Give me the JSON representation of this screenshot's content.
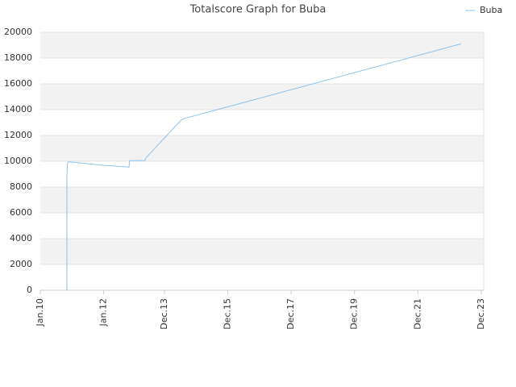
{
  "chart_data": {
    "type": "line",
    "title": "Totalscore Graph for Buba",
    "x": [
      2010.84,
      2010.84,
      2010.86,
      2010.89,
      2011.15,
      2011.91,
      2012.8,
      2012.82,
      2013.31,
      2013.33,
      2014.45,
      2014.53,
      2023.28
    ],
    "series": [
      {
        "name": "Buba",
        "color": "#8ec2ee",
        "values": [
          0,
          8900,
          9900,
          9950,
          9900,
          9700,
          9550,
          10050,
          10060,
          10250,
          13200,
          13300,
          19100
        ]
      }
    ],
    "xlim": [
      2010,
      2024
    ],
    "xticks": [
      {
        "value": 2010,
        "label": "Jan.10"
      },
      {
        "value": 2012,
        "label": "Jan.12"
      },
      {
        "value": 2013.92,
        "label": "Dec.13"
      },
      {
        "value": 2015.92,
        "label": "Dec.15"
      },
      {
        "value": 2017.92,
        "label": "Dec.17"
      },
      {
        "value": 2019.92,
        "label": "Dec.19"
      },
      {
        "value": 2021.92,
        "label": "Dec.21"
      },
      {
        "value": 2023.92,
        "label": "Dec.23"
      }
    ],
    "ylim": [
      0,
      20000
    ],
    "yticks": [
      0,
      2000,
      4000,
      6000,
      8000,
      10000,
      12000,
      14000,
      16000,
      18000,
      20000
    ],
    "grid": true,
    "legend": "top-right"
  }
}
